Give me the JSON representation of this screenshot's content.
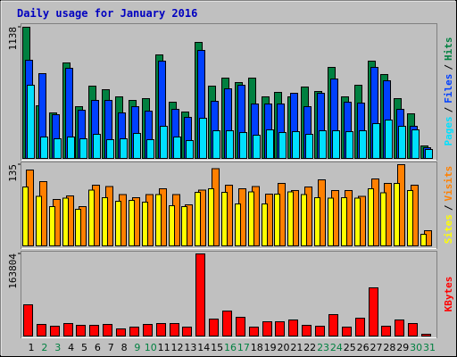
{
  "title": "Daily usage for January 2016",
  "chart_data": [
    {
      "type": "bar",
      "legend_separator": "/",
      "ylim": [
        0,
        1138
      ],
      "yticks": [
        1138
      ],
      "series": [
        {
          "name": "Hits",
          "color": "#008040",
          "values": [
            1138,
            457,
            395,
            828,
            449,
            627,
            596,
            534,
            503,
            519,
            898,
            488,
            403,
            1006,
            627,
            697,
            658,
            697,
            534,
            573,
            534,
            619,
            581,
            790,
            534,
            635,
            844,
            728,
            519,
            387,
            108
          ]
        },
        {
          "name": "Files",
          "color": "#0040ff",
          "values": [
            852,
            736,
            379,
            782,
            418,
            503,
            503,
            395,
            449,
            410,
            844,
            426,
            356,
            937,
            496,
            604,
            635,
            472,
            472,
            472,
            565,
            449,
            565,
            689,
            488,
            480,
            790,
            674,
            426,
            279,
            93
          ]
        },
        {
          "name": "Pages",
          "color": "#00e0ff",
          "values": [
            635,
            186,
            170,
            186,
            170,
            209,
            163,
            170,
            217,
            163,
            279,
            186,
            155,
            348,
            240,
            240,
            225,
            201,
            248,
            225,
            232,
            209,
            240,
            240,
            232,
            240,
            302,
            333,
            279,
            248,
            77
          ]
        }
      ]
    },
    {
      "type": "bar",
      "legend_separator": "/",
      "ylim": [
        0,
        135
      ],
      "yticks": [
        135
      ],
      "series": [
        {
          "name": "Visits",
          "color": "#ff8000",
          "values": [
            126,
            107,
            77,
            83,
            65,
            101,
            99,
            85,
            80,
            85,
            95,
            85,
            68,
            93,
            128,
            101,
            95,
            99,
            86,
            104,
            92,
            98,
            110,
            92,
            92,
            82,
            111,
            104,
            135,
            101,
            25
          ]
        },
        {
          "name": "Sites",
          "color": "#ffff00",
          "values": [
            98,
            82,
            65,
            79,
            61,
            93,
            80,
            74,
            76,
            73,
            85,
            67,
            65,
            89,
            95,
            89,
            70,
            90,
            70,
            86,
            90,
            85,
            80,
            79,
            80,
            79,
            95,
            88,
            104,
            92,
            19
          ]
        }
      ]
    },
    {
      "type": "bar",
      "ylim": [
        0,
        163804
      ],
      "yticks": [
        163804
      ],
      "categories": [
        "1",
        "2",
        "3",
        "4",
        "5",
        "6",
        "7",
        "8",
        "9",
        "10",
        "11",
        "12",
        "13",
        "14",
        "15",
        "16",
        "17",
        "18",
        "19",
        "20",
        "21",
        "22",
        "23",
        "24",
        "25",
        "26",
        "27",
        "28",
        "29",
        "30",
        "31"
      ],
      "category_colors": [
        "#000000",
        "#008040",
        "#008040",
        "#000000",
        "#000000",
        "#000000",
        "#000000",
        "#000000",
        "#008040",
        "#008040",
        "#000000",
        "#000000",
        "#000000",
        "#000000",
        "#000000",
        "#008040",
        "#008040",
        "#000000",
        "#000000",
        "#000000",
        "#000000",
        "#000000",
        "#008040",
        "#008040",
        "#000000",
        "#000000",
        "#000000",
        "#000000",
        "#000000",
        "#008040",
        "#008040"
      ],
      "series": [
        {
          "name": "KBytes",
          "color": "#ff0000",
          "values": [
            62000,
            23000,
            19600,
            24900,
            21400,
            21400,
            23100,
            14200,
            17800,
            23100,
            24900,
            24900,
            17800,
            163804,
            33800,
            49900,
            37400,
            17800,
            28500,
            28500,
            32000,
            21400,
            19600,
            42700,
            17800,
            35600,
            96100,
            19600,
            32000,
            24900,
            3600
          ]
        }
      ]
    }
  ]
}
